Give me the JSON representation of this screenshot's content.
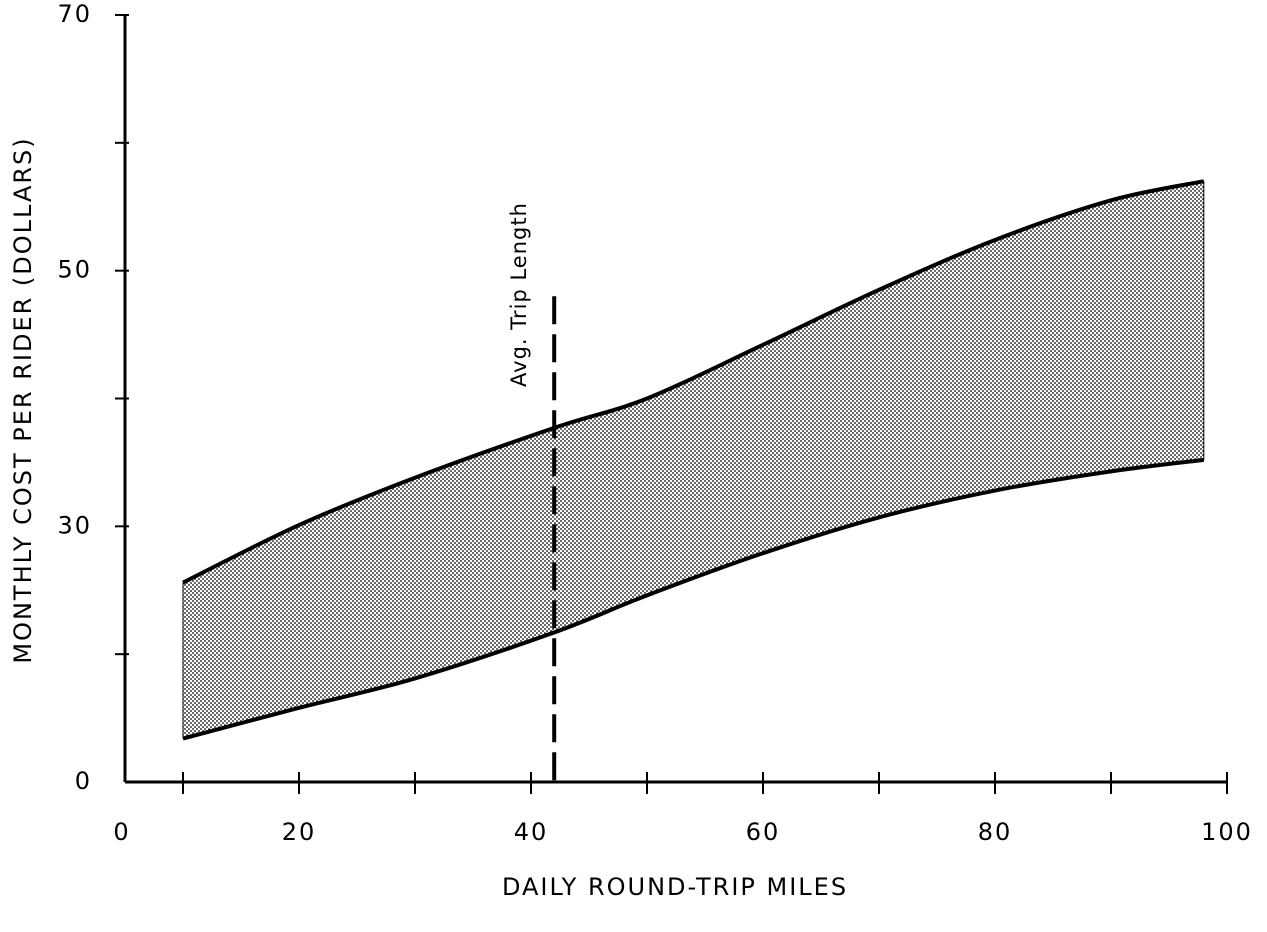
{
  "chart_data": {
    "type": "band",
    "x_label": "DAILY ROUND-TRIP MILES",
    "y_label": "MONTHLY COST PER RIDER (DOLLARS)",
    "x_origin_label": "0",
    "y_origin_label": "0",
    "x": [
      10,
      20,
      30,
      42,
      50,
      60,
      70,
      80,
      90,
      98
    ],
    "series": [
      {
        "name": "upper",
        "color": "#000000",
        "values": [
          25.6,
          30.1,
          33.8,
          37.7,
          40.0,
          44.2,
          48.5,
          52.4,
          55.5,
          57.0
        ]
      },
      {
        "name": "lower",
        "color": "#000000",
        "values": [
          13.4,
          15.8,
          18.1,
          21.7,
          24.6,
          27.9,
          30.7,
          32.8,
          34.3,
          35.2
        ]
      }
    ],
    "xlim": [
      5,
      100
    ],
    "ylim": [
      10,
      70
    ],
    "xticks": [
      20,
      40,
      60,
      80,
      100
    ],
    "yticks": [
      30,
      50,
      70
    ],
    "minor_xticks": [
      10,
      20,
      30,
      40,
      50,
      60,
      70,
      80,
      90,
      100
    ],
    "minor_yticks": [
      20,
      30,
      40,
      50,
      60,
      70
    ],
    "reference_line": {
      "x": 42,
      "y_top": 48,
      "label": "Avg. Trip Length"
    }
  }
}
